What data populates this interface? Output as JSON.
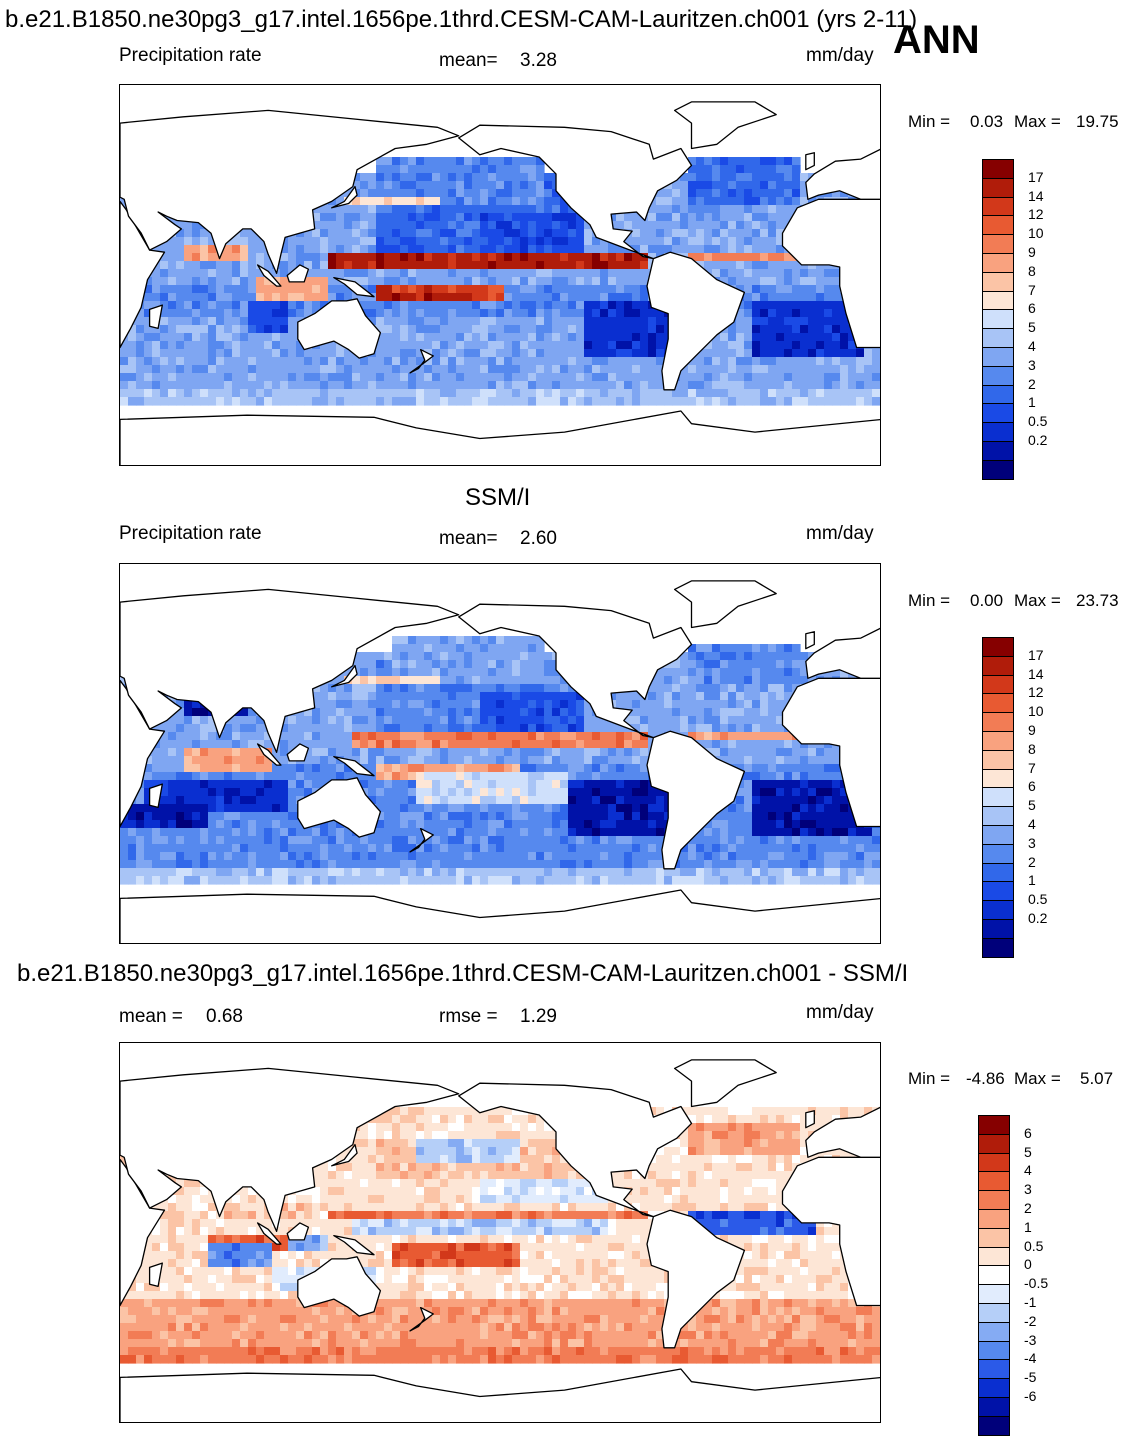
{
  "page": {
    "main_title": "b.e21.B1850.ne30pg3_g17.intel.1656pe.1thrd.CESM-CAM-Lauritzen.ch001 (yrs 2-11)",
    "season": "ANN"
  },
  "colors": {
    "precip": [
      "#00007a",
      "#0012a8",
      "#0a2fd0",
      "#1a4ae6",
      "#3168ea",
      "#5689ee",
      "#7fa6f2",
      "#a8c4f6",
      "#cfe0fb",
      "#fde6d6",
      "#fbc4a6",
      "#f9a27f",
      "#f27c55",
      "#e85a32",
      "#d2381a",
      "#b01c0a",
      "#860000"
    ],
    "diff": [
      "#00007a",
      "#0012a8",
      "#0a2fd0",
      "#2b5ae8",
      "#5689ee",
      "#85abf3",
      "#b5cff8",
      "#e1ecfd",
      "#ffffff",
      "#fde6d6",
      "#fbc4a6",
      "#f9a27f",
      "#f27c55",
      "#e85a32",
      "#d2381a",
      "#b01c0a",
      "#860000"
    ]
  },
  "chart_data": [
    {
      "type": "heatmap",
      "id": "model",
      "title": "",
      "left_label": "Precipitation rate",
      "mean_label": "mean=",
      "mean_value": "3.28",
      "units": "mm/day",
      "min_label": "Min =",
      "min_value": "0.03",
      "max_label": "Max =",
      "max_value": "19.75",
      "levels": [
        "17",
        "14",
        "12",
        "10",
        "9",
        "8",
        "7",
        "6",
        "5",
        "4",
        "3",
        "2",
        "1",
        "0.5",
        "0.2"
      ]
    },
    {
      "type": "heatmap",
      "id": "obs",
      "title": "SSM/I",
      "left_label": "Precipitation rate",
      "mean_label": "mean=",
      "mean_value": "2.60",
      "units": "mm/day",
      "min_label": "Min =",
      "min_value": "0.00",
      "max_label": "Max =",
      "max_value": "23.73",
      "levels": [
        "17",
        "14",
        "12",
        "10",
        "9",
        "8",
        "7",
        "6",
        "5",
        "4",
        "3",
        "2",
        "1",
        "0.5",
        "0.2"
      ]
    },
    {
      "type": "heatmap",
      "id": "diff",
      "title": "b.e21.B1850.ne30pg3_g17.intel.1656pe.1thrd.CESM-CAM-Lauritzen.ch001 - SSM/I",
      "left_label": "mean =",
      "left_value": "0.68",
      "rmse_label": "rmse =",
      "rmse_value": "1.29",
      "units": "mm/day",
      "min_label": "Min =",
      "min_value": "-4.86",
      "max_label": "Max =",
      "max_value": "5.07",
      "levels": [
        "6",
        "5",
        "4",
        "3",
        "2",
        "1",
        "0.5",
        "0",
        "-0.5",
        "-1",
        "-2",
        "-3",
        "-4",
        "-5",
        "-6"
      ]
    }
  ]
}
